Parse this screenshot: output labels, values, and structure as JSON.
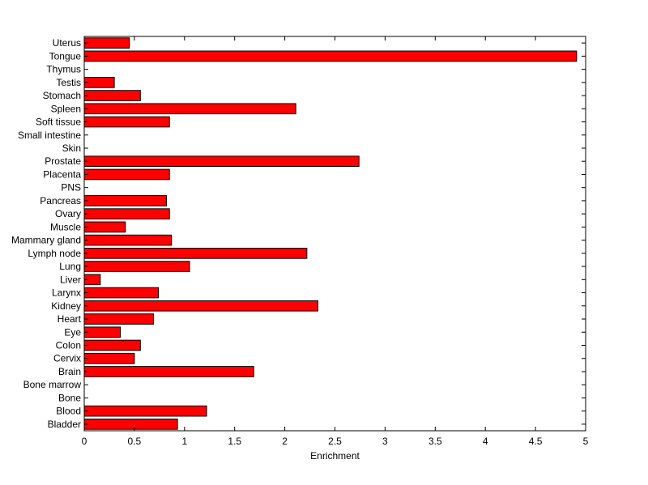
{
  "chart_data": {
    "type": "bar",
    "orientation": "horizontal",
    "xlabel": "Enrichment",
    "ylabel": "",
    "xlim": [
      0,
      5
    ],
    "xticks": [
      0,
      0.5,
      1,
      1.5,
      2,
      2.5,
      3,
      3.5,
      4,
      4.5,
      5
    ],
    "xtick_labels": [
      "0",
      "0.5",
      "1",
      "1.5",
      "2",
      "2.5",
      "3",
      "3.5",
      "4",
      "4.5",
      "5"
    ],
    "categories": [
      "Bladder",
      "Blood",
      "Bone",
      "Bone marrow",
      "Brain",
      "Cervix",
      "Colon",
      "Eye",
      "Heart",
      "Kidney",
      "Larynx",
      "Liver",
      "Lung",
      "Lymph node",
      "Mammary gland",
      "Muscle",
      "Ovary",
      "Pancreas",
      "PNS",
      "Placenta",
      "Prostate",
      "Skin",
      "Small intestine",
      "Soft tissue",
      "Spleen",
      "Stomach",
      "Testis",
      "Thymus",
      "Tongue",
      "Uterus"
    ],
    "values": [
      0.93,
      1.22,
      0,
      0,
      1.69,
      0.5,
      0.56,
      0.36,
      0.69,
      2.33,
      0.74,
      0.16,
      1.05,
      2.22,
      0.87,
      0.41,
      0.85,
      0.82,
      0,
      0.85,
      2.74,
      0,
      0,
      0.85,
      2.11,
      0.56,
      0.3,
      0,
      4.91,
      0.45
    ],
    "bar_color": "#ff0000",
    "grid": false,
    "legend": "none"
  }
}
